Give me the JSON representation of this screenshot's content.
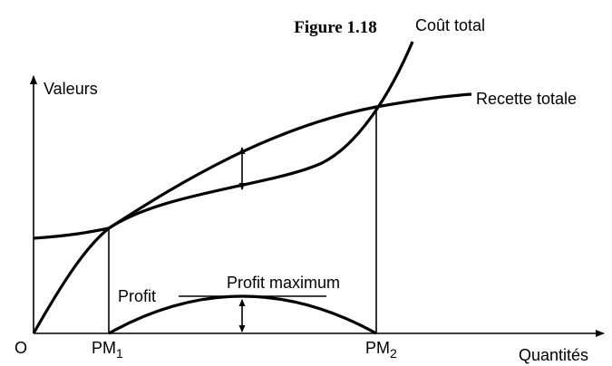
{
  "title": "Figure 1.18",
  "axes": {
    "y_label": "Valeurs",
    "x_label": "Quantités",
    "origin": "O"
  },
  "curves": {
    "cost": "Coût total",
    "revenue": "Recette totale"
  },
  "points": [
    {
      "text": "PM",
      "sub": "1"
    },
    {
      "text": "PM",
      "sub": "2"
    }
  ],
  "profit": {
    "label": "Profit",
    "maximum": "Profit maximum"
  }
}
